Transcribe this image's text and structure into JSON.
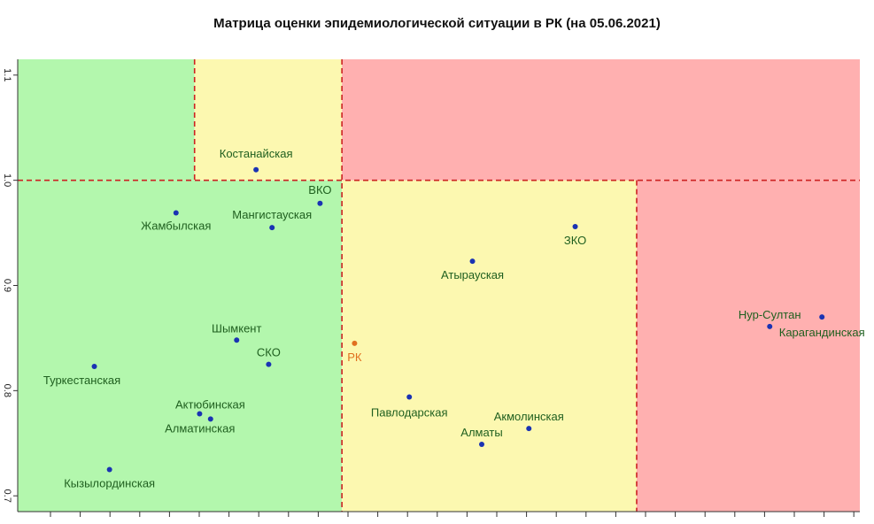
{
  "chart_data": {
    "type": "scatter",
    "title": "Матрица оценки эпидемиологической ситуации в РК (на 05.06.2021)",
    "xlabel": "",
    "ylabel": "",
    "xlim": [
      0,
      1
    ],
    "ylim": [
      0.685,
      1.115
    ],
    "yticks": [
      {
        "value": 0.7,
        "label": "0.7"
      },
      {
        "value": 0.8,
        "label": "0.8"
      },
      {
        "value": 0.9,
        "label": "0.9"
      },
      {
        "value": 1.0,
        "label": "1.0"
      },
      {
        "value": 1.1,
        "label": "1.1"
      }
    ],
    "zones": [
      {
        "x": [
          0,
          0.385
        ],
        "y": [
          0.685,
          1.0
        ],
        "color": "#b3f7ad"
      },
      {
        "x": [
          0,
          0.21
        ],
        "y": [
          1.0,
          1.115
        ],
        "color": "#b3f7ad"
      },
      {
        "x": [
          0.21,
          0.385
        ],
        "y": [
          1.0,
          1.115
        ],
        "color": "#fcf8b0"
      },
      {
        "x": [
          0.385,
          0.735
        ],
        "y": [
          0.685,
          1.0
        ],
        "color": "#fcf8b0"
      },
      {
        "x": [
          0.385,
          1.0
        ],
        "y": [
          1.0,
          1.115
        ],
        "color": "#ffb0b0"
      },
      {
        "x": [
          0.735,
          1.0
        ],
        "y": [
          0.685,
          1.0
        ],
        "color": "#ffb0b0"
      }
    ],
    "thresholds": {
      "y": 1.0,
      "x_low_upper": 0.21,
      "x_mid": 0.385,
      "x_high_lower": 0.735
    },
    "points": [
      {
        "name": "Костанайская",
        "x": 0.283,
        "y": 1.01,
        "color": "#1a33b3",
        "text_color": "#1f5f1f",
        "label_dx": 0,
        "label_dy": -14,
        "anchor": "middle"
      },
      {
        "name": "ВКО",
        "x": 0.359,
        "y": 0.978,
        "color": "#1a33b3",
        "text_color": "#1f5f1f",
        "label_dx": 0,
        "label_dy": -11,
        "anchor": "middle"
      },
      {
        "name": "Жамбылская",
        "x": 0.188,
        "y": 0.969,
        "color": "#1a33b3",
        "text_color": "#1f5f1f",
        "label_dx": 0,
        "label_dy": 19,
        "anchor": "middle"
      },
      {
        "name": "Мангистауская",
        "x": 0.302,
        "y": 0.955,
        "color": "#1a33b3",
        "text_color": "#1f5f1f",
        "label_dx": 0,
        "label_dy": -10,
        "anchor": "middle"
      },
      {
        "name": "ЗКО",
        "x": 0.662,
        "y": 0.956,
        "color": "#1a33b3",
        "text_color": "#1f5f1f",
        "label_dx": 0,
        "label_dy": 20,
        "anchor": "middle"
      },
      {
        "name": "Атырауская",
        "x": 0.54,
        "y": 0.923,
        "color": "#1a33b3",
        "text_color": "#1f5f1f",
        "label_dx": 0,
        "label_dy": 20,
        "anchor": "middle"
      },
      {
        "name": "Нур-Султан",
        "x": 0.893,
        "y": 0.861,
        "color": "#1a33b3",
        "text_color": "#1f5f1f",
        "label_dx": 0,
        "label_dy": -9,
        "anchor": "middle"
      },
      {
        "name": "Карагандинская",
        "x": 0.955,
        "y": 0.87,
        "color": "#1a33b3",
        "text_color": "#1f5f1f",
        "label_dx": 0,
        "label_dy": 22,
        "anchor": "middle"
      },
      {
        "name": "Шымкент",
        "x": 0.26,
        "y": 0.848,
        "color": "#1a33b3",
        "text_color": "#1f5f1f",
        "label_dx": 0,
        "label_dy": -9,
        "anchor": "middle"
      },
      {
        "name": "РК",
        "x": 0.4,
        "y": 0.845,
        "color": "#e07020",
        "text_color": "#e07020",
        "label_dx": 0,
        "label_dy": 20,
        "anchor": "middle"
      },
      {
        "name": "СКО",
        "x": 0.298,
        "y": 0.825,
        "color": "#1a33b3",
        "text_color": "#1f5f1f",
        "label_dx": 0,
        "label_dy": -9,
        "anchor": "middle"
      },
      {
        "name": "Туркестанская",
        "x": 0.091,
        "y": 0.823,
        "color": "#1a33b3",
        "text_color": "#1f5f1f",
        "label_dx": -14,
        "label_dy": 20,
        "anchor": "middle"
      },
      {
        "name": "Павлодарская",
        "x": 0.465,
        "y": 0.794,
        "color": "#1a33b3",
        "text_color": "#1f5f1f",
        "label_dx": 0,
        "label_dy": 22,
        "anchor": "middle"
      },
      {
        "name": "Актюбинская",
        "x": 0.216,
        "y": 0.778,
        "color": "#1a33b3",
        "text_color": "#1f5f1f",
        "label_dx": 12,
        "label_dy": -6,
        "anchor": "middle"
      },
      {
        "name": "Алматинская",
        "x": 0.229,
        "y": 0.773,
        "color": "#1a33b3",
        "text_color": "#1f5f1f",
        "label_dx": -12,
        "label_dy": 15,
        "anchor": "middle"
      },
      {
        "name": "Акмолинская",
        "x": 0.607,
        "y": 0.764,
        "color": "#1a33b3",
        "text_color": "#1f5f1f",
        "label_dx": 0,
        "label_dy": -9,
        "anchor": "middle"
      },
      {
        "name": "Алматы",
        "x": 0.551,
        "y": 0.749,
        "color": "#1a33b3",
        "text_color": "#1f5f1f",
        "label_dx": 0,
        "label_dy": -9,
        "anchor": "middle"
      },
      {
        "name": "Кызылординская",
        "x": 0.109,
        "y": 0.725,
        "color": "#1a33b3",
        "text_color": "#1f5f1f",
        "label_dx": 0,
        "label_dy": 20,
        "anchor": "middle"
      }
    ]
  }
}
